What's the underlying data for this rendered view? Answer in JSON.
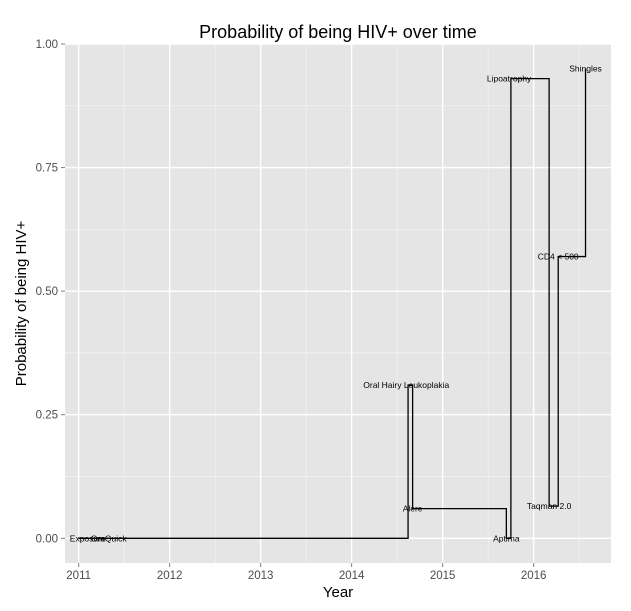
{
  "chart_data": {
    "type": "line",
    "step": true,
    "title": "Probability of being HIV+ over time",
    "xlabel": "Year",
    "ylabel": "Probability of being HIV+",
    "xlim": [
      2010.85,
      2016.85
    ],
    "ylim": [
      -0.05,
      1.0
    ],
    "x_ticks": [
      2011,
      2012,
      2013,
      2014,
      2015,
      2016
    ],
    "x_tick_labels": [
      "2011",
      "2012",
      "2013",
      "2014",
      "2015",
      "2016"
    ],
    "y_ticks": [
      0.0,
      0.25,
      0.5,
      0.75,
      1.0
    ],
    "y_tick_labels": [
      "0.00",
      "0.25",
      "0.50",
      "0.75",
      "1.00"
    ],
    "grid": true,
    "colors": {
      "panel": "#e5e5e5",
      "grid_major": "#ffffff",
      "grid_minor": "#f2f2f2",
      "line": "#000000",
      "tick_text": "#4d4d4d"
    },
    "series": [
      {
        "x": [
          2011.0,
          2011.28,
          2014.62,
          2014.62,
          2014.67,
          2014.67,
          2015.7,
          2015.7,
          2015.75,
          2015.75,
          2016.17,
          2016.17,
          2016.27,
          2016.27,
          2016.57,
          2016.57
        ],
        "y": [
          0.0,
          0.0,
          0.0,
          0.31,
          0.31,
          0.06,
          0.06,
          0.0,
          0.0,
          0.93,
          0.93,
          0.065,
          0.065,
          0.57,
          0.57,
          0.95
        ]
      }
    ],
    "annotations": [
      {
        "text": "Exposure",
        "x": 2011.1,
        "y": 0.0
      },
      {
        "text": "OraQuick",
        "x": 2011.33,
        "y": 0.0
      },
      {
        "text": "Oral Hairy Leukoplakia",
        "x": 2014.6,
        "y": 0.31
      },
      {
        "text": "Alere",
        "x": 2014.67,
        "y": 0.06
      },
      {
        "text": "Aptima",
        "x": 2015.7,
        "y": 0.0
      },
      {
        "text": "Lipoatrophy",
        "x": 2015.73,
        "y": 0.93
      },
      {
        "text": "Taqman 2.0",
        "x": 2016.17,
        "y": 0.065
      },
      {
        "text": "CD4 < 500",
        "x": 2016.27,
        "y": 0.57
      },
      {
        "text": "Shingles",
        "x": 2016.57,
        "y": 0.95
      }
    ]
  }
}
